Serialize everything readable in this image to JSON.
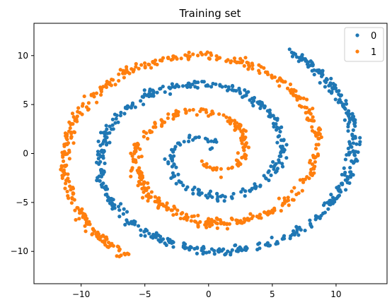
{
  "chart_data": {
    "type": "scatter",
    "title": "Training set",
    "xlabel": "",
    "ylabel": "",
    "xlim": [
      -13.7,
      14.0
    ],
    "ylim": [
      -13.3,
      13.3
    ],
    "xticks": [
      -10,
      -5,
      0,
      5,
      10
    ],
    "yticks": [
      -10,
      -5,
      0,
      5,
      10
    ],
    "grid": false,
    "legend_position": "top-right",
    "series": [
      {
        "name": "0",
        "color": "#1f77b4",
        "spiral": {
          "start_angle_rad": 0.6,
          "end_angle_rad": 13.6,
          "radius_per_rad": 0.9,
          "direction": 1
        }
      },
      {
        "name": "1",
        "color": "#ff7f0e",
        "spiral": {
          "start_angle_rad": 0.6,
          "end_angle_rad": 13.6,
          "radius_per_rad": 0.9,
          "direction": -1
        }
      }
    ]
  }
}
